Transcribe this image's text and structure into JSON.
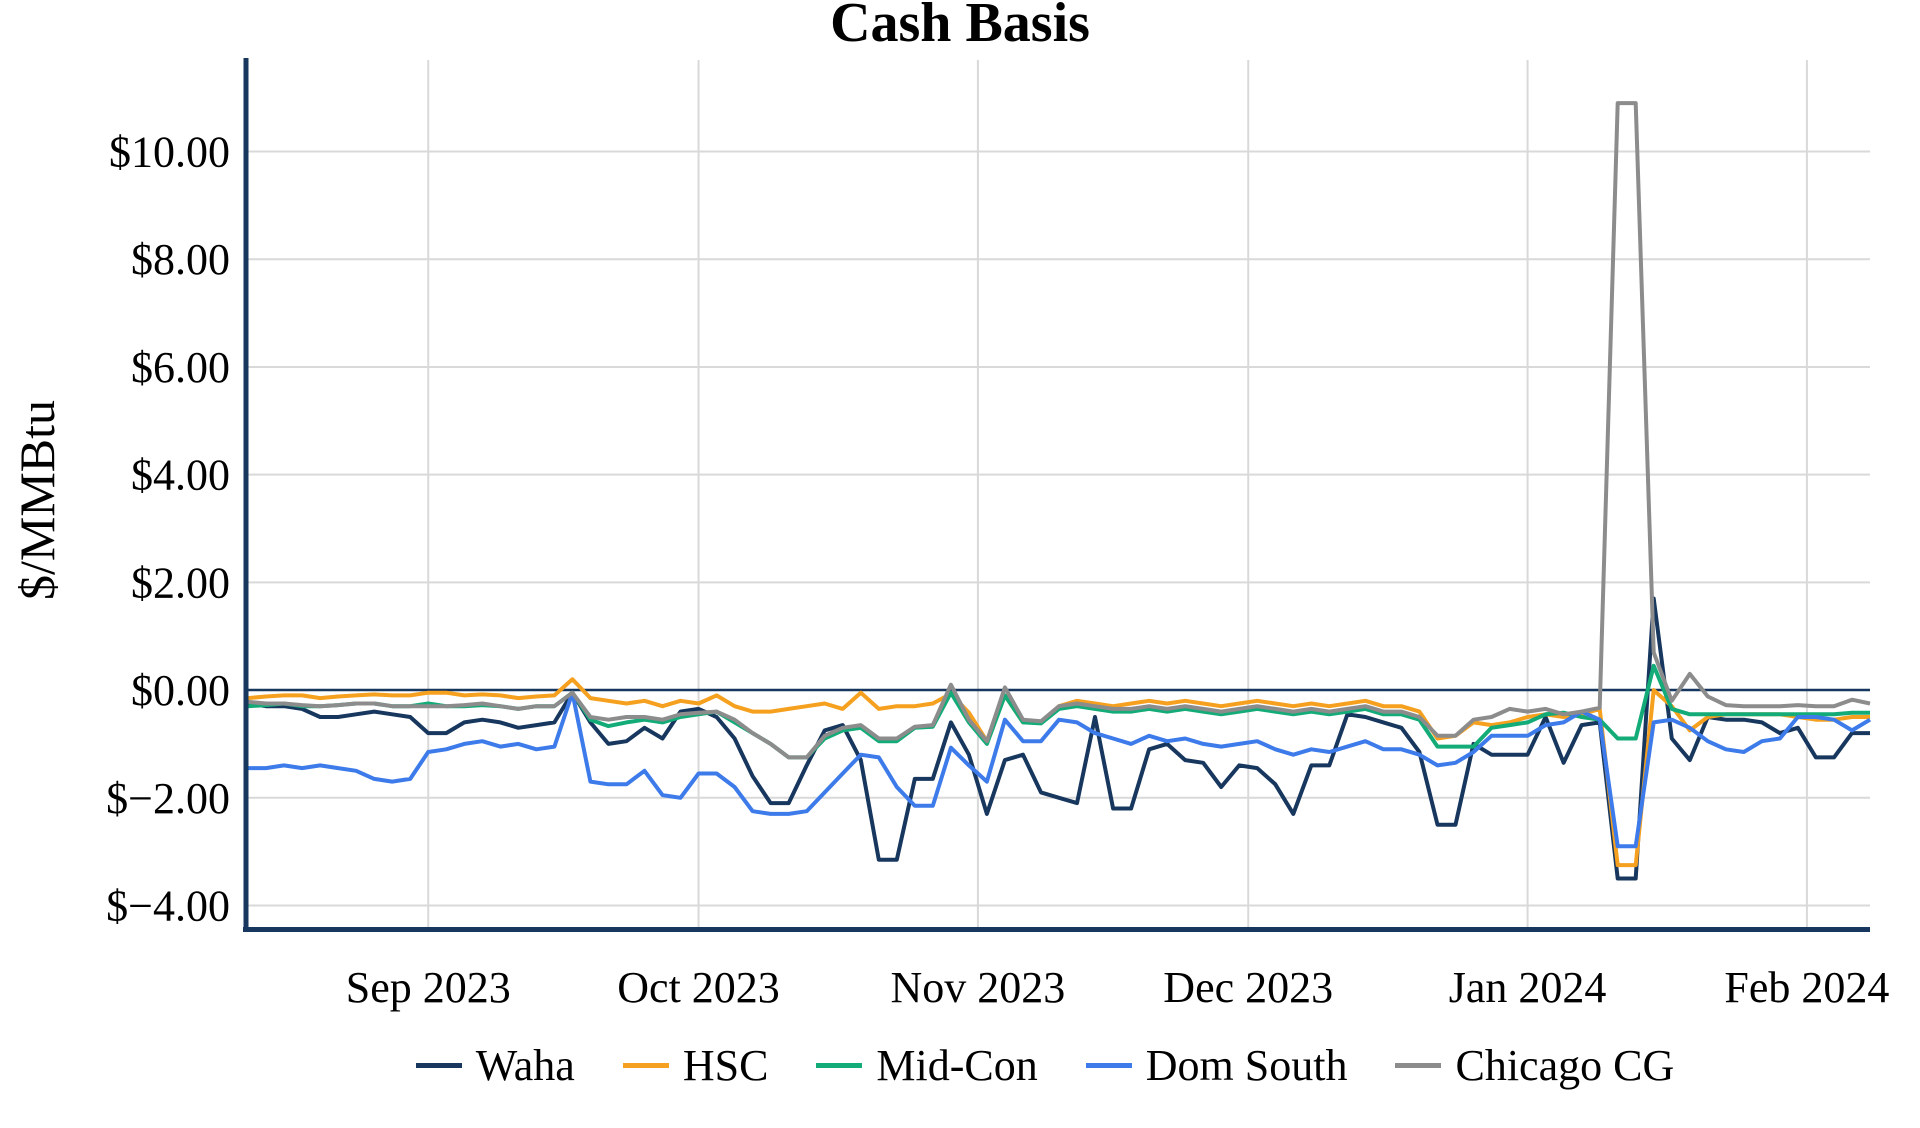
{
  "chart_data": {
    "type": "line",
    "title": "Cash Basis",
    "ylabel": "$/MMBtu",
    "xlabel": "",
    "legend_position": "bottom",
    "grid": true,
    "zero_line": true,
    "axis_color": "#17375E",
    "gridline_color": "#D9D9D9",
    "ylim": [
      -4.4,
      11.7
    ],
    "start_date": "2023-08-12",
    "step_days": 2,
    "dates": [
      "2023-08-12",
      "2023-08-14",
      "2023-08-16",
      "2023-08-18",
      "2023-08-20",
      "2023-08-22",
      "2023-08-24",
      "2023-08-26",
      "2023-08-28",
      "2023-08-30",
      "2023-09-01",
      "2023-09-03",
      "2023-09-05",
      "2023-09-07",
      "2023-09-09",
      "2023-09-11",
      "2023-09-13",
      "2023-09-15",
      "2023-09-17",
      "2023-09-19",
      "2023-09-21",
      "2023-09-23",
      "2023-09-25",
      "2023-09-27",
      "2023-09-29",
      "2023-10-01",
      "2023-10-03",
      "2023-10-05",
      "2023-10-07",
      "2023-10-09",
      "2023-10-11",
      "2023-10-13",
      "2023-10-15",
      "2023-10-17",
      "2023-10-19",
      "2023-10-21",
      "2023-10-23",
      "2023-10-25",
      "2023-10-27",
      "2023-10-29",
      "2023-10-31",
      "2023-11-02",
      "2023-11-04",
      "2023-11-06",
      "2023-11-08",
      "2023-11-10",
      "2023-11-12",
      "2023-11-14",
      "2023-11-16",
      "2023-11-18",
      "2023-11-20",
      "2023-11-22",
      "2023-11-24",
      "2023-11-26",
      "2023-11-28",
      "2023-11-30",
      "2023-12-02",
      "2023-12-04",
      "2023-12-06",
      "2023-12-08",
      "2023-12-10",
      "2023-12-12",
      "2023-12-14",
      "2023-12-16",
      "2023-12-18",
      "2023-12-20",
      "2023-12-22",
      "2023-12-24",
      "2023-12-26",
      "2023-12-28",
      "2023-12-30",
      "2024-01-01",
      "2024-01-03",
      "2024-01-05",
      "2024-01-07",
      "2024-01-09",
      "2024-01-11",
      "2024-01-13",
      "2024-01-15",
      "2024-01-17",
      "2024-01-19",
      "2024-01-21",
      "2024-01-23",
      "2024-01-25",
      "2024-01-27",
      "2024-01-29",
      "2024-01-31",
      "2024-02-02",
      "2024-02-04",
      "2024-02-06",
      "2024-02-08"
    ],
    "y_ticks": [
      {
        "value": 10,
        "label": "$10.00"
      },
      {
        "value": 8,
        "label": "$8.00"
      },
      {
        "value": 6,
        "label": "$6.00"
      },
      {
        "value": 4,
        "label": "$4.00"
      },
      {
        "value": 2,
        "label": "$2.00"
      },
      {
        "value": 0,
        "label": "$0.00"
      },
      {
        "value": -2,
        "label": "$−2.00"
      },
      {
        "value": -4,
        "label": "$−4.00"
      }
    ],
    "x_ticks": [
      {
        "date": "2023-09-01",
        "index": 10,
        "label": "Sep 2023"
      },
      {
        "date": "2023-10-01",
        "index": 25,
        "label": "Oct 2023"
      },
      {
        "date": "2023-11-01",
        "index": 40.5,
        "label": "Nov 2023"
      },
      {
        "date": "2023-12-01",
        "index": 55.5,
        "label": "Dec 2023"
      },
      {
        "date": "2024-01-01",
        "index": 71,
        "label": "Jan 2024"
      },
      {
        "date": "2024-02-01",
        "index": 86.5,
        "label": "Feb 2024"
      }
    ],
    "series": [
      {
        "name": "Waha",
        "color": "#17375E",
        "values": [
          -0.25,
          -0.3,
          -0.3,
          -0.35,
          -0.5,
          -0.5,
          -0.45,
          -0.4,
          -0.45,
          -0.5,
          -0.8,
          -0.8,
          -0.6,
          -0.55,
          -0.6,
          -0.7,
          -0.65,
          -0.6,
          -0.05,
          -0.6,
          -1.0,
          -0.95,
          -0.7,
          -0.9,
          -0.4,
          -0.35,
          -0.5,
          -0.9,
          -1.6,
          -2.1,
          -2.1,
          -1.4,
          -0.75,
          -0.65,
          -1.3,
          -3.15,
          -3.15,
          -1.65,
          -1.65,
          -0.6,
          -1.2,
          -2.3,
          -1.3,
          -1.2,
          -1.9,
          -2.0,
          -2.1,
          -0.5,
          -2.2,
          -2.2,
          -1.1,
          -1.0,
          -1.3,
          -1.35,
          -1.8,
          -1.4,
          -1.45,
          -1.75,
          -2.3,
          -1.4,
          -1.4,
          -0.45,
          -0.5,
          -0.6,
          -0.7,
          -1.15,
          -2.5,
          -2.5,
          -1.0,
          -1.2,
          -1.2,
          -1.2,
          -0.5,
          -1.35,
          -0.65,
          -0.6,
          -3.5,
          -3.5,
          1.7,
          -0.9,
          -1.3,
          -0.5,
          -0.55,
          -0.55,
          -0.6,
          -0.8,
          -0.7,
          -1.25,
          -1.25,
          -0.8,
          -0.8
        ]
      },
      {
        "name": "HSC",
        "color": "#F5A01E",
        "values": [
          -0.15,
          -0.12,
          -0.1,
          -0.1,
          -0.15,
          -0.12,
          -0.1,
          -0.08,
          -0.1,
          -0.1,
          -0.05,
          -0.05,
          -0.1,
          -0.08,
          -0.1,
          -0.15,
          -0.12,
          -0.1,
          0.2,
          -0.15,
          -0.2,
          -0.25,
          -0.2,
          -0.3,
          -0.2,
          -0.25,
          -0.1,
          -0.3,
          -0.4,
          -0.4,
          -0.35,
          -0.3,
          -0.25,
          -0.35,
          -0.05,
          -0.35,
          -0.3,
          -0.3,
          -0.25,
          -0.07,
          -0.42,
          -0.95,
          -0.1,
          -0.6,
          -0.6,
          -0.3,
          -0.2,
          -0.25,
          -0.3,
          -0.25,
          -0.2,
          -0.25,
          -0.2,
          -0.25,
          -0.3,
          -0.25,
          -0.2,
          -0.25,
          -0.3,
          -0.25,
          -0.3,
          -0.25,
          -0.2,
          -0.3,
          -0.3,
          -0.4,
          -0.9,
          -0.85,
          -0.6,
          -0.65,
          -0.6,
          -0.5,
          -0.45,
          -0.5,
          -0.45,
          -0.35,
          -3.25,
          -3.25,
          0.0,
          -0.3,
          -0.75,
          -0.5,
          -0.45,
          -0.45,
          -0.45,
          -0.45,
          -0.5,
          -0.55,
          -0.55,
          -0.5,
          -0.5
        ]
      },
      {
        "name": "Mid-Con",
        "color": "#13AB77",
        "values": [
          -0.3,
          -0.28,
          -0.25,
          -0.3,
          -0.3,
          -0.28,
          -0.25,
          -0.25,
          -0.3,
          -0.3,
          -0.25,
          -0.3,
          -0.3,
          -0.28,
          -0.3,
          -0.35,
          -0.3,
          -0.3,
          -0.05,
          -0.55,
          -0.67,
          -0.6,
          -0.55,
          -0.6,
          -0.5,
          -0.45,
          -0.4,
          -0.6,
          -0.8,
          -1.0,
          -1.25,
          -1.25,
          -0.9,
          -0.75,
          -0.7,
          -0.95,
          -0.95,
          -0.7,
          -0.68,
          -0.05,
          -0.6,
          -1.0,
          -0.1,
          -0.6,
          -0.62,
          -0.35,
          -0.3,
          -0.35,
          -0.4,
          -0.4,
          -0.35,
          -0.4,
          -0.35,
          -0.4,
          -0.45,
          -0.4,
          -0.35,
          -0.4,
          -0.45,
          -0.4,
          -0.45,
          -0.4,
          -0.35,
          -0.45,
          -0.45,
          -0.55,
          -1.05,
          -1.05,
          -1.05,
          -0.7,
          -0.65,
          -0.6,
          -0.45,
          -0.42,
          -0.5,
          -0.55,
          -0.9,
          -0.9,
          0.45,
          -0.35,
          -0.45,
          -0.45,
          -0.45,
          -0.45,
          -0.45,
          -0.45,
          -0.45,
          -0.45,
          -0.45,
          -0.42,
          -0.42
        ]
      },
      {
        "name": "Dom South",
        "color": "#3D7BEA",
        "values": [
          -1.45,
          -1.45,
          -1.4,
          -1.45,
          -1.4,
          -1.45,
          -1.5,
          -1.65,
          -1.7,
          -1.65,
          -1.15,
          -1.1,
          -1.0,
          -0.95,
          -1.05,
          -1.0,
          -1.1,
          -1.05,
          -0.05,
          -1.7,
          -1.75,
          -1.75,
          -1.5,
          -1.95,
          -2.0,
          -1.55,
          -1.55,
          -1.8,
          -2.25,
          -2.3,
          -2.3,
          -2.25,
          -1.9,
          -1.55,
          -1.2,
          -1.25,
          -1.8,
          -2.15,
          -2.15,
          -1.07,
          -1.4,
          -1.7,
          -0.55,
          -0.95,
          -0.95,
          -0.55,
          -0.6,
          -0.8,
          -0.9,
          -1.0,
          -0.85,
          -0.95,
          -0.9,
          -1.0,
          -1.05,
          -1.0,
          -0.95,
          -1.1,
          -1.2,
          -1.1,
          -1.15,
          -1.05,
          -0.95,
          -1.1,
          -1.1,
          -1.2,
          -1.4,
          -1.35,
          -1.15,
          -0.85,
          -0.85,
          -0.85,
          -0.65,
          -0.6,
          -0.4,
          -0.55,
          -2.9,
          -2.9,
          -0.6,
          -0.55,
          -0.7,
          -0.95,
          -1.1,
          -1.15,
          -0.95,
          -0.9,
          -0.5,
          -0.5,
          -0.55,
          -0.75,
          -0.55
        ]
      },
      {
        "name": "Chicago CG",
        "color": "#8C8C8C",
        "values": [
          -0.22,
          -0.25,
          -0.25,
          -0.28,
          -0.3,
          -0.28,
          -0.25,
          -0.25,
          -0.3,
          -0.3,
          -0.3,
          -0.3,
          -0.28,
          -0.25,
          -0.3,
          -0.35,
          -0.3,
          -0.3,
          -0.05,
          -0.5,
          -0.55,
          -0.5,
          -0.5,
          -0.55,
          -0.45,
          -0.42,
          -0.4,
          -0.55,
          -0.8,
          -1.0,
          -1.25,
          -1.25,
          -0.85,
          -0.7,
          -0.65,
          -0.9,
          -0.9,
          -0.68,
          -0.65,
          0.1,
          -0.55,
          -0.95,
          0.05,
          -0.55,
          -0.58,
          -0.3,
          -0.25,
          -0.3,
          -0.35,
          -0.35,
          -0.3,
          -0.35,
          -0.3,
          -0.35,
          -0.4,
          -0.35,
          -0.3,
          -0.35,
          -0.4,
          -0.35,
          -0.4,
          -0.35,
          -0.3,
          -0.4,
          -0.4,
          -0.5,
          -0.85,
          -0.85,
          -0.55,
          -0.5,
          -0.35,
          -0.4,
          -0.35,
          -0.45,
          -0.4,
          -0.33,
          10.9,
          10.9,
          0.7,
          -0.2,
          0.3,
          -0.12,
          -0.28,
          -0.3,
          -0.3,
          -0.3,
          -0.28,
          -0.3,
          -0.3,
          -0.18,
          -0.25
        ]
      }
    ]
  }
}
